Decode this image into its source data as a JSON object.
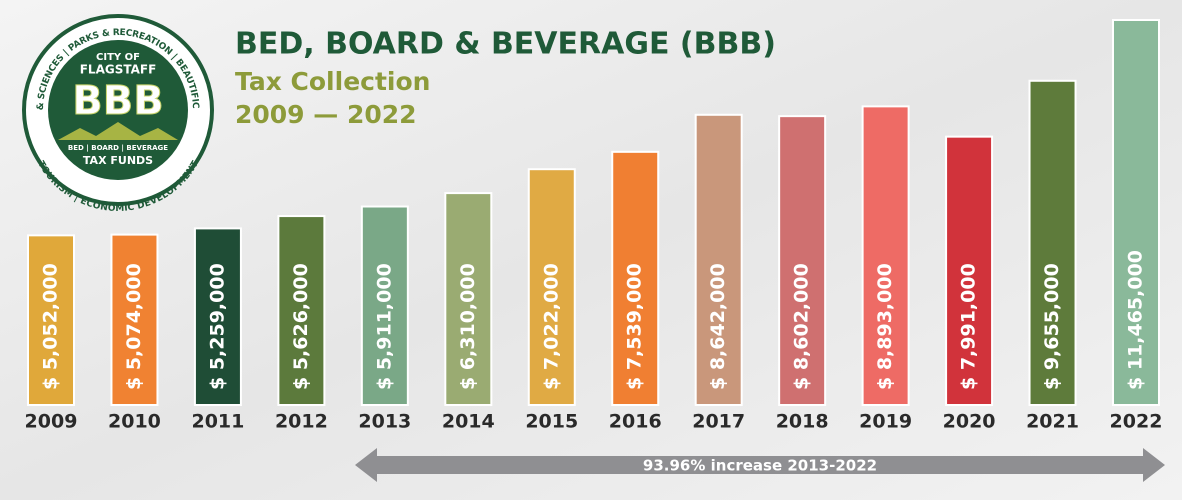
{
  "chart_data": {
    "type": "bar",
    "title": "BED, BOARD & BEVERAGE (BBB)",
    "subtitle": "Tax Collection",
    "period": "2009 — 2022",
    "categories": [
      "2009",
      "2010",
      "2011",
      "2012",
      "2013",
      "2014",
      "2015",
      "2016",
      "2017",
      "2018",
      "2019",
      "2020",
      "2021",
      "2022"
    ],
    "values": [
      5052000,
      5074000,
      5259000,
      5626000,
      5911000,
      6310000,
      7022000,
      7539000,
      8642000,
      8602000,
      8893000,
      7991000,
      9655000,
      11465000
    ],
    "value_labels": [
      "$ 5,052,000",
      "$ 5,074,000",
      "$ 5,259,000",
      "$ 5,626,000",
      "$ 5,911,000",
      "$ 6,310,000",
      "$ 7,022,000",
      "$ 7,539,000",
      "$ 8,642,000",
      "$ 8,602,000",
      "$ 8,893,000",
      "$ 7,991,000",
      "$ 9,655,000",
      "$ 11,465,000"
    ],
    "colors": [
      "#e0a83a",
      "#f08232",
      "#1f4d36",
      "#5c7a3c",
      "#7aa887",
      "#9aab72",
      "#e0aa44",
      "#f07f32",
      "#c9977b",
      "#cf7070",
      "#ee6b65",
      "#d1333b",
      "#5e7b3b",
      "#8ab99a"
    ],
    "annotation": "93.96% increase 2013-2022"
  },
  "logo": {
    "city": "CITY OF",
    "name": "FLAGSTAFF",
    "mark": "BBB",
    "tagline": "BED | BOARD | BEVERAGE",
    "funds": "TAX FUNDS",
    "ring_top": "ARTS & SCIENCES | PARKS & RECREATION | BEAUTIFICATION",
    "ring_bottom": "TOURISM | ECONOMIC DEVELOPMENT"
  }
}
